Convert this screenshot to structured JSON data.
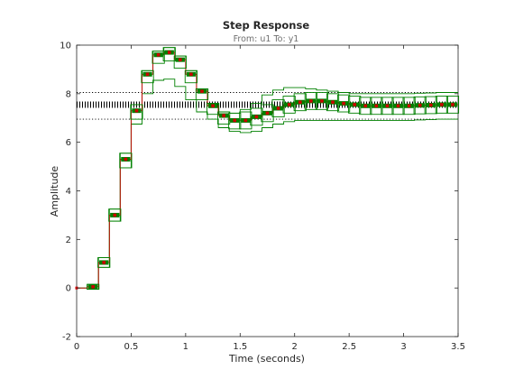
{
  "chart_data": {
    "type": "line",
    "title": "Step Response",
    "subtitle": "From: u1  To: y1",
    "xlabel": "Time (seconds)",
    "ylabel": "Amplitude",
    "xlim": [
      0,
      3.5
    ],
    "ylim": [
      -2,
      10
    ],
    "x_ticks": [
      "0",
      "0.5",
      "1",
      "1.5",
      "2",
      "2.5",
      "3",
      "3.5"
    ],
    "y_ticks": [
      "-2",
      "0",
      "2",
      "4",
      "6",
      "8",
      "10"
    ],
    "grid": false,
    "sample_time": 0.1,
    "steady_state": 7.55,
    "steady_state_bounds": [
      6.95,
      8.05
    ],
    "colors": {
      "nominal": "#cc0000",
      "uncertainty": "#008000",
      "bounds": "#000000"
    },
    "series": [
      {
        "name": "",
        "role": "nominal",
        "x": [
          0,
          0.1,
          0.2,
          0.3,
          0.4,
          0.5,
          0.6,
          0.7,
          0.8,
          0.9,
          1.0,
          1.1,
          1.2,
          1.3,
          1.4,
          1.5,
          1.6,
          1.7,
          1.8,
          1.9,
          2.0,
          2.1,
          2.2,
          2.3,
          2.4,
          2.5,
          2.6,
          2.7,
          2.8,
          2.9,
          3.0,
          3.1,
          3.2,
          3.3,
          3.4
        ],
        "values": [
          0,
          0.05,
          1.05,
          3.0,
          5.3,
          7.3,
          8.8,
          9.6,
          9.7,
          9.4,
          8.8,
          8.1,
          7.5,
          7.1,
          6.9,
          6.9,
          7.05,
          7.2,
          7.4,
          7.55,
          7.65,
          7.7,
          7.7,
          7.65,
          7.6,
          7.55,
          7.5,
          7.5,
          7.5,
          7.5,
          7.5,
          7.52,
          7.53,
          7.55,
          7.55
        ]
      },
      {
        "name": "",
        "role": "uncertainty-upper",
        "x": [
          0,
          0.1,
          0.2,
          0.3,
          0.4,
          0.5,
          0.6,
          0.7,
          0.8,
          0.9,
          1.0,
          1.1,
          1.2,
          1.3,
          1.4,
          1.5,
          1.6,
          1.7,
          1.8,
          1.9,
          2.0,
          2.1,
          2.2,
          2.3,
          2.4,
          2.5,
          2.6,
          2.7,
          2.8,
          2.9,
          3.0,
          3.1,
          3.2,
          3.3,
          3.4
        ],
        "values": [
          0,
          0.15,
          1.25,
          3.25,
          5.55,
          7.55,
          8.95,
          9.75,
          9.9,
          9.55,
          8.95,
          8.2,
          7.6,
          7.25,
          7.2,
          7.35,
          7.6,
          7.95,
          8.15,
          8.25,
          8.25,
          8.2,
          8.15,
          8.1,
          8.05,
          8.0,
          8.0,
          8.0,
          8.0,
          8.0,
          8.0,
          8.02,
          8.03,
          8.05,
          8.05
        ]
      },
      {
        "name": "",
        "role": "uncertainty-lower",
        "x": [
          0,
          0.1,
          0.2,
          0.3,
          0.4,
          0.5,
          0.6,
          0.7,
          0.8,
          0.9,
          1.0,
          1.1,
          1.2,
          1.3,
          1.4,
          1.5,
          1.6,
          1.7,
          1.8,
          1.9,
          2.0,
          2.1,
          2.2,
          2.3,
          2.4,
          2.5,
          2.6,
          2.7,
          2.8,
          2.9,
          3.0,
          3.1,
          3.2,
          3.3,
          3.4
        ],
        "values": [
          0,
          -0.05,
          0.85,
          2.75,
          4.95,
          6.75,
          8.0,
          8.55,
          8.6,
          8.3,
          7.75,
          7.25,
          6.95,
          6.6,
          6.45,
          6.4,
          6.45,
          6.6,
          6.75,
          6.85,
          6.9,
          6.9,
          6.9,
          6.9,
          6.9,
          6.9,
          6.9,
          6.9,
          6.9,
          6.9,
          6.9,
          6.92,
          6.93,
          6.95,
          6.95
        ]
      }
    ]
  }
}
